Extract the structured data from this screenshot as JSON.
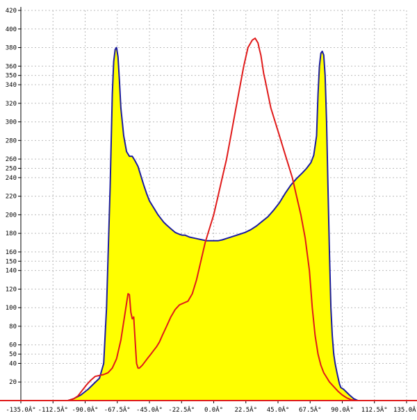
{
  "chart_data": {
    "type": "area",
    "title": "",
    "xlabel": "",
    "ylabel": "",
    "xlim": [
      -135,
      135
    ],
    "ylim": [
      0,
      420
    ],
    "grid": true,
    "x_ticks": [
      -135,
      -112.5,
      -90,
      -67.5,
      -45,
      -22.5,
      0,
      22.5,
      45,
      67.5,
      90,
      112.5,
      135
    ],
    "x_tick_labels": [
      "-135.0Â°",
      "-112.5Â°",
      "-90.0Â°",
      "-67.5Â°",
      "-45.0Â°",
      "-22.5Â°",
      "0.0Â°",
      "22.5Â°",
      "45.0Â°",
      "67.5Â°",
      "90.0Â°",
      "112.5Â°",
      "135.0Â°"
    ],
    "y_ticks": [
      20,
      40,
      50,
      60,
      80,
      100,
      120,
      140,
      150,
      160,
      180,
      200,
      220,
      240,
      250,
      260,
      280,
      300,
      320,
      340,
      350,
      360,
      380,
      400,
      420
    ],
    "y_tick_labels": [
      "20",
      "40",
      "50",
      "60",
      "80",
      "100",
      "120",
      "140",
      "150",
      "160",
      "180",
      "200",
      "220",
      "240",
      "250",
      "260",
      "280",
      "300",
      "320",
      "340",
      "350",
      "360",
      "380",
      "400",
      "420"
    ],
    "colors": {
      "fill": "#ffff00",
      "blue_line": "#1a1aa0",
      "red_line": "#e01a1a",
      "grid": "#bbbbbb",
      "axis": "#e01a1a"
    },
    "series": [
      {
        "color": "#1a1aa0",
        "filled": true,
        "x": [
          -135,
          -102,
          -98,
          -93,
          -88,
          -84,
          -80,
          -77,
          -75,
          -72.5,
          -71,
          -70,
          -69,
          -68,
          -67,
          -66,
          -65,
          -63,
          -61,
          -59,
          -57,
          -55,
          -53,
          -51,
          -49,
          -47,
          -45,
          -43,
          -41,
          -39,
          -37,
          -35,
          -33,
          -30,
          -27,
          -24,
          -22,
          -20,
          -17,
          -14,
          -11,
          -8,
          -5,
          -2,
          0,
          3,
          6,
          10,
          14,
          18,
          22,
          26,
          30,
          34,
          38,
          42,
          46,
          50,
          54,
          58,
          62,
          65,
          68,
          70,
          72,
          73,
          74,
          75,
          76,
          77,
          78,
          79,
          80,
          81,
          82,
          83,
          84,
          85,
          86,
          87,
          88,
          89,
          91,
          93,
          95,
          98,
          101,
          104,
          135
        ],
        "y": [
          0,
          0,
          2,
          6,
          12,
          18,
          24,
          40,
          100,
          230,
          330,
          365,
          378,
          380,
          370,
          345,
          315,
          285,
          268,
          263,
          263,
          258,
          252,
          242,
          232,
          223,
          215,
          210,
          205,
          200,
          196,
          192,
          189,
          185,
          181,
          179,
          178,
          178,
          176,
          175,
          174,
          173,
          172,
          172,
          172,
          172,
          173,
          175,
          177,
          179,
          181,
          184,
          188,
          193,
          198,
          205,
          213,
          223,
          232,
          239,
          245,
          250,
          256,
          264,
          285,
          330,
          360,
          374,
          376,
          372,
          350,
          300,
          230,
          160,
          100,
          70,
          50,
          40,
          32,
          25,
          18,
          14,
          12,
          9,
          6,
          2,
          0,
          0,
          0
        ]
      },
      {
        "color": "#e01a1a",
        "filled": false,
        "x": [
          -135,
          -102,
          -98,
          -95,
          -92,
          -89,
          -86,
          -83,
          -80,
          -77,
          -74,
          -71,
          -68,
          -65,
          -62,
          -60,
          -59,
          -58,
          -57,
          -56,
          -55,
          -54,
          -53,
          -52,
          -50,
          -48,
          -46,
          -44,
          -42,
          -40,
          -38,
          -36,
          -33,
          -30,
          -27,
          -24,
          -21,
          -18,
          -15,
          -12,
          -9,
          -6,
          -3,
          0,
          3,
          6,
          9,
          12,
          15,
          18,
          21,
          24,
          27,
          29,
          31,
          32,
          33,
          34,
          35,
          36,
          38,
          40,
          43,
          46,
          49,
          52,
          55,
          58,
          61,
          64,
          67,
          69,
          71,
          73,
          75,
          77,
          79,
          81,
          84,
          87,
          90,
          93,
          96,
          99,
          102,
          105,
          135
        ],
        "y": [
          0,
          0,
          2,
          5,
          11,
          17,
          22,
          26,
          27,
          28,
          30,
          35,
          45,
          65,
          95,
          115,
          114,
          95,
          88,
          90,
          65,
          40,
          35,
          35,
          38,
          42,
          46,
          50,
          54,
          58,
          63,
          70,
          80,
          90,
          98,
          103,
          105,
          107,
          115,
          130,
          150,
          170,
          185,
          200,
          220,
          240,
          260,
          285,
          310,
          335,
          360,
          380,
          388,
          390,
          385,
          378,
          372,
          362,
          352,
          345,
          330,
          315,
          300,
          285,
          270,
          255,
          240,
          220,
          200,
          175,
          140,
          100,
          70,
          50,
          38,
          30,
          25,
          20,
          15,
          10,
          6,
          3,
          1,
          0,
          0,
          0,
          0
        ]
      }
    ]
  }
}
